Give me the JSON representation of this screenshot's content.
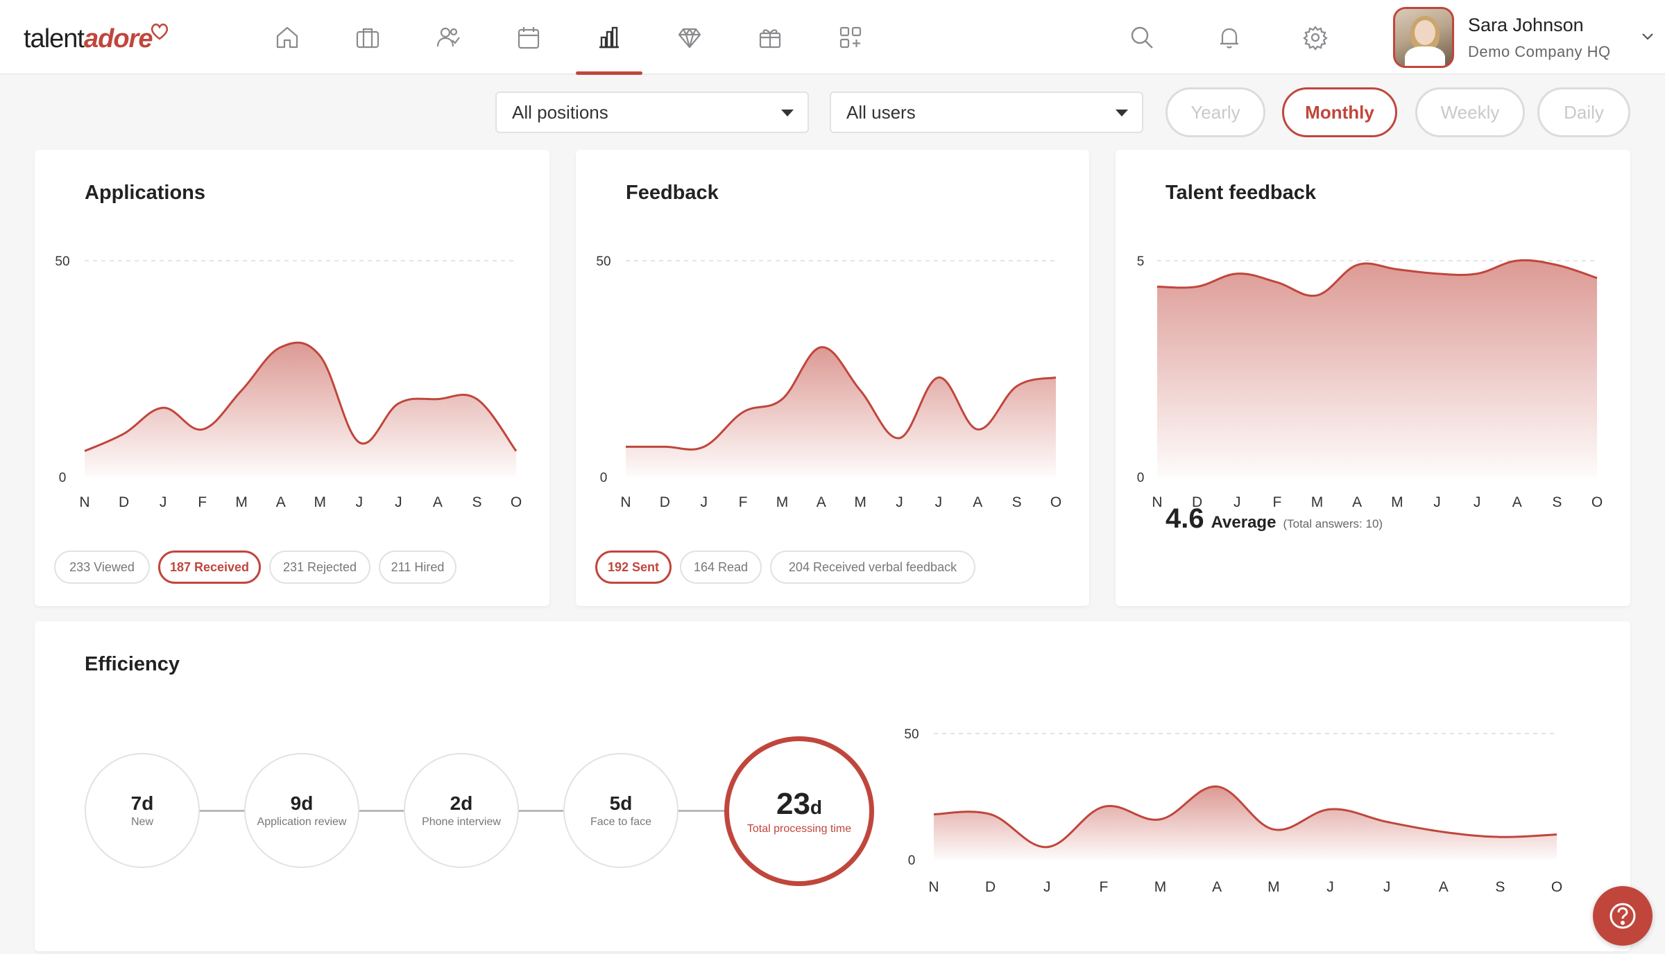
{
  "brand": {
    "part1": "talent",
    "part2": "adore",
    "accent": "#c0463c"
  },
  "nav": [
    {
      "name": "home",
      "icon": "home-icon"
    },
    {
      "name": "jobs",
      "icon": "briefcase-icon"
    },
    {
      "name": "candidates",
      "icon": "users-icon"
    },
    {
      "name": "calendar",
      "icon": "calendar-icon"
    },
    {
      "name": "reports",
      "icon": "bar-chart-icon",
      "active": true
    },
    {
      "name": "talent",
      "icon": "diamond-icon"
    },
    {
      "name": "events",
      "icon": "gift-icon"
    },
    {
      "name": "apps",
      "icon": "grid-plus-icon"
    }
  ],
  "header": {
    "search_icon": "search-icon",
    "bell_icon": "bell-icon",
    "settings_icon": "gear-icon"
  },
  "user": {
    "name": "Sara Johnson",
    "company": "Demo Company HQ"
  },
  "filters": {
    "positions": "All positions",
    "users": "All users",
    "periods": [
      "Yearly",
      "Monthly",
      "Weekly",
      "Daily"
    ],
    "active_period": "Monthly"
  },
  "applications": {
    "title": "Applications",
    "badges": [
      "233 Viewed",
      "187 Received",
      "231 Rejected",
      "211 Hired"
    ],
    "active_badge": 1
  },
  "feedback": {
    "title": "Feedback",
    "badges": [
      "192 Sent",
      "164 Read",
      "204 Received verbal feedback"
    ],
    "active_badge": 0
  },
  "talent_feedback": {
    "title": "Talent feedback",
    "average_value": "4.6",
    "average_label": "Average",
    "total_answers": "(Total answers: 10)"
  },
  "efficiency": {
    "title": "Efficiency",
    "steps": [
      {
        "value": "7d",
        "label": "New"
      },
      {
        "value": "9d",
        "label": "Application review"
      },
      {
        "value": "2d",
        "label": "Phone interview"
      },
      {
        "value": "5d",
        "label": "Face to face"
      }
    ],
    "total": {
      "value": "23",
      "unit": "d",
      "label": "Total processing time"
    }
  },
  "chart_data": [
    {
      "type": "area",
      "title": "Applications",
      "categories": [
        "N",
        "D",
        "J",
        "F",
        "M",
        "A",
        "M",
        "J",
        "J",
        "A",
        "S",
        "O"
      ],
      "series": [
        {
          "values": [
            6,
            10,
            16,
            11,
            20,
            30,
            28,
            8,
            17,
            18,
            18,
            6
          ]
        }
      ],
      "ylim": [
        0,
        50
      ],
      "yticks": [
        "0",
        "50"
      ],
      "grid": "dashed-top"
    },
    {
      "type": "area",
      "title": "Feedback",
      "categories": [
        "N",
        "D",
        "J",
        "F",
        "M",
        "A",
        "M",
        "J",
        "J",
        "A",
        "S",
        "O"
      ],
      "series": [
        {
          "values": [
            7,
            7,
            7,
            15,
            18,
            30,
            20,
            9,
            23,
            11,
            21,
            23
          ]
        }
      ],
      "ylim": [
        0,
        50
      ],
      "yticks": [
        "0",
        "50"
      ],
      "grid": "dashed-top"
    },
    {
      "type": "area",
      "title": "Talent feedback",
      "categories": [
        "N",
        "D",
        "J",
        "F",
        "M",
        "A",
        "M",
        "J",
        "J",
        "A",
        "S",
        "O"
      ],
      "series": [
        {
          "values": [
            4.4,
            4.4,
            4.7,
            4.5,
            4.2,
            4.9,
            4.8,
            4.7,
            4.7,
            5.0,
            4.9,
            4.6
          ]
        }
      ],
      "ylim": [
        0,
        5
      ],
      "yticks": [
        "0",
        "5"
      ],
      "grid": "dashed-top"
    },
    {
      "type": "area",
      "title": "Efficiency",
      "categories": [
        "N",
        "D",
        "J",
        "F",
        "M",
        "A",
        "M",
        "J",
        "J",
        "A",
        "S",
        "O"
      ],
      "series": [
        {
          "values": [
            18,
            18,
            5,
            21,
            16,
            29,
            12,
            20,
            15,
            11,
            9,
            10
          ]
        }
      ],
      "ylim": [
        0,
        50
      ],
      "yticks": [
        "0",
        "50"
      ],
      "grid": "dashed-top"
    }
  ]
}
